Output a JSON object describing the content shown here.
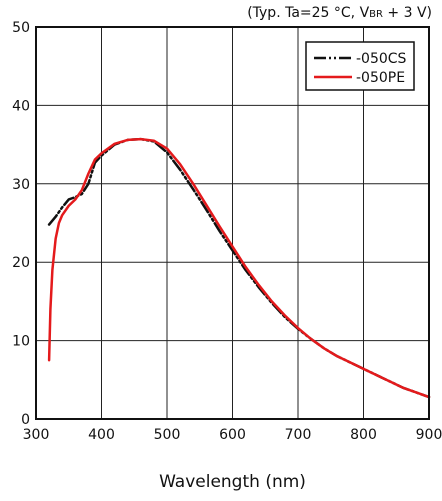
{
  "chart_data": {
    "type": "line",
    "title": "",
    "note": {
      "prefix": "(Typ. Ta=25 °C, V",
      "subscript": "BR",
      "suffix": " + 3 V)"
    },
    "xlabel": "Wavelength (nm)",
    "ylabel": "",
    "xlim": [
      300,
      900
    ],
    "ylim": [
      0,
      50
    ],
    "xticks": [
      300,
      400,
      500,
      600,
      700,
      800,
      900
    ],
    "yticks": [
      0,
      10,
      20,
      30,
      40,
      50
    ],
    "grid": true,
    "legend_position": "top-right",
    "series": [
      {
        "name": "-050CS",
        "color": "#111111",
        "style": "dash-dot-dot",
        "x": [
          320,
          330,
          340,
          350,
          360,
          370,
          380,
          390,
          400,
          420,
          440,
          460,
          480,
          500,
          520,
          540,
          560,
          580,
          600,
          620,
          640,
          660,
          680,
          700,
          720,
          740,
          760,
          780,
          800,
          820,
          840,
          860,
          880,
          900
        ],
        "y": [
          24.8,
          25.8,
          27.0,
          28.0,
          28.3,
          28.7,
          30.0,
          32.7,
          33.6,
          35.0,
          35.6,
          35.7,
          35.4,
          34.0,
          31.8,
          29.3,
          26.7,
          24.0,
          21.5,
          19.0,
          16.8,
          14.8,
          13.0,
          11.5,
          10.2,
          9.0,
          8.0,
          7.2,
          6.4,
          5.6,
          4.8,
          4.0,
          3.4,
          2.8
        ]
      },
      {
        "name": "-050PE",
        "color": "#e41a1c",
        "style": "solid",
        "x": [
          320,
          322,
          325,
          330,
          335,
          340,
          350,
          360,
          370,
          380,
          390,
          400,
          420,
          440,
          460,
          480,
          500,
          520,
          540,
          560,
          580,
          600,
          620,
          640,
          660,
          680,
          700,
          720,
          740,
          760,
          780,
          800,
          820,
          840,
          860,
          880,
          900
        ],
        "y": [
          7.5,
          14.0,
          19.0,
          23.0,
          25.0,
          26.0,
          27.2,
          28.0,
          29.2,
          31.3,
          33.1,
          33.9,
          35.1,
          35.6,
          35.7,
          35.5,
          34.5,
          32.5,
          30.0,
          27.3,
          24.6,
          22.0,
          19.4,
          17.1,
          15.0,
          13.2,
          11.6,
          10.2,
          9.0,
          8.0,
          7.2,
          6.4,
          5.6,
          4.8,
          4.0,
          3.4,
          2.8
        ]
      }
    ]
  }
}
